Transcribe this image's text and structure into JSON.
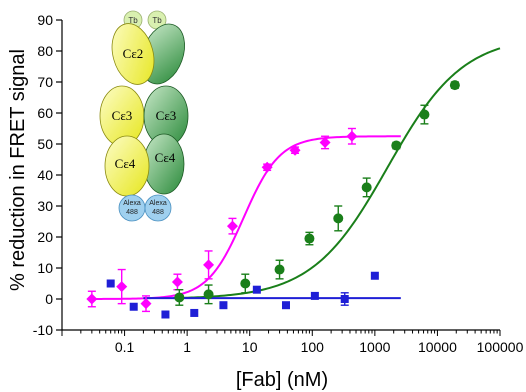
{
  "chart_data": {
    "type": "scatter",
    "title": "",
    "xlabel": "[Fab] (nM)",
    "ylabel": "% reduction in FRET signal",
    "xscale": "log",
    "xlim": [
      0.01,
      100000
    ],
    "ylim": [
      -10,
      90
    ],
    "xticks": [
      0.1,
      1,
      10,
      100,
      1000,
      10000,
      100000
    ],
    "xtick_labels": [
      "0.1",
      "1",
      "10",
      "100",
      "1000",
      "10000",
      "100000"
    ],
    "yticks": [
      -10,
      0,
      10,
      20,
      30,
      40,
      50,
      60,
      70,
      80,
      90
    ],
    "ytick_labels": [
      "-10",
      "0",
      "10",
      "20",
      "30",
      "40",
      "50",
      "60",
      "70",
      "80",
      "90"
    ],
    "grid": false,
    "series": [
      {
        "color": "#ff00ff",
        "marker": "diamond",
        "x": [
          0.03,
          0.09,
          0.22,
          0.7,
          2.2,
          5.3,
          19,
          53,
          160,
          430
        ],
        "y": [
          0,
          4,
          -1.5,
          5.5,
          11,
          23.5,
          42.5,
          48,
          50.5,
          52.5
        ],
        "err": [
          2.5,
          5.5,
          2.5,
          2.5,
          4.5,
          2.5,
          1.0,
          1.0,
          2.0,
          2.5
        ],
        "fit": {
          "model": "logistic",
          "bottom": 0,
          "top": 52.5,
          "ec50": 8,
          "hill": 1.5,
          "xmin": 0.03,
          "xmax": 2600
        }
      },
      {
        "color": "#1a7f1a",
        "marker": "circle",
        "x": [
          0.75,
          2.2,
          8.5,
          30,
          90,
          260,
          740,
          2200,
          6200,
          19000
        ],
        "y": [
          0.5,
          1.5,
          5.0,
          9.5,
          19.5,
          26.0,
          36.0,
          49.5,
          59.5,
          69.0
        ],
        "err": [
          2.5,
          3.0,
          3.0,
          3.0,
          2.0,
          4.0,
          3.0,
          1.0,
          3.0,
          1.0
        ],
        "fit": {
          "model": "logistic",
          "bottom": 0,
          "top": 85,
          "ec50": 1600,
          "hill": 0.72,
          "xmin": 0.6,
          "xmax": 100000
        }
      },
      {
        "color": "#1f1fd6",
        "marker": "square",
        "x": [
          0.06,
          0.14,
          0.45,
          1.3,
          3.8,
          13,
          38,
          110,
          330,
          1000
        ],
        "y": [
          5.0,
          -2.5,
          -5.0,
          -4.5,
          -2.0,
          3.0,
          -2.0,
          1.0,
          0.0,
          7.5
        ],
        "err": [
          0,
          0,
          0,
          0,
          0,
          0,
          0,
          0,
          2.0,
          0
        ],
        "fit": {
          "model": "constant",
          "value": 0.3,
          "xmin": 0.2,
          "xmax": 2600
        }
      }
    ]
  },
  "diagram": {
    "tb_top_left": "Tb",
    "tb_top_right": "Tb",
    "c2_label": "Cε2",
    "c3_left_label": "Cε3",
    "c3_right_label": "Cε3",
    "c4_left_label": "Cε4",
    "c4_right_label": "Cε4",
    "alexa_left": [
      "Alexa",
      "488"
    ],
    "alexa_right": [
      "Alexa",
      "488"
    ],
    "colors": {
      "yellow_light": "#fbfba0",
      "yellow": "#e8e820",
      "green_light": "#b8e0b8",
      "green": "#2e8b3c",
      "tb": "#d9f0b0",
      "alexa": "#9fd0ef"
    }
  }
}
